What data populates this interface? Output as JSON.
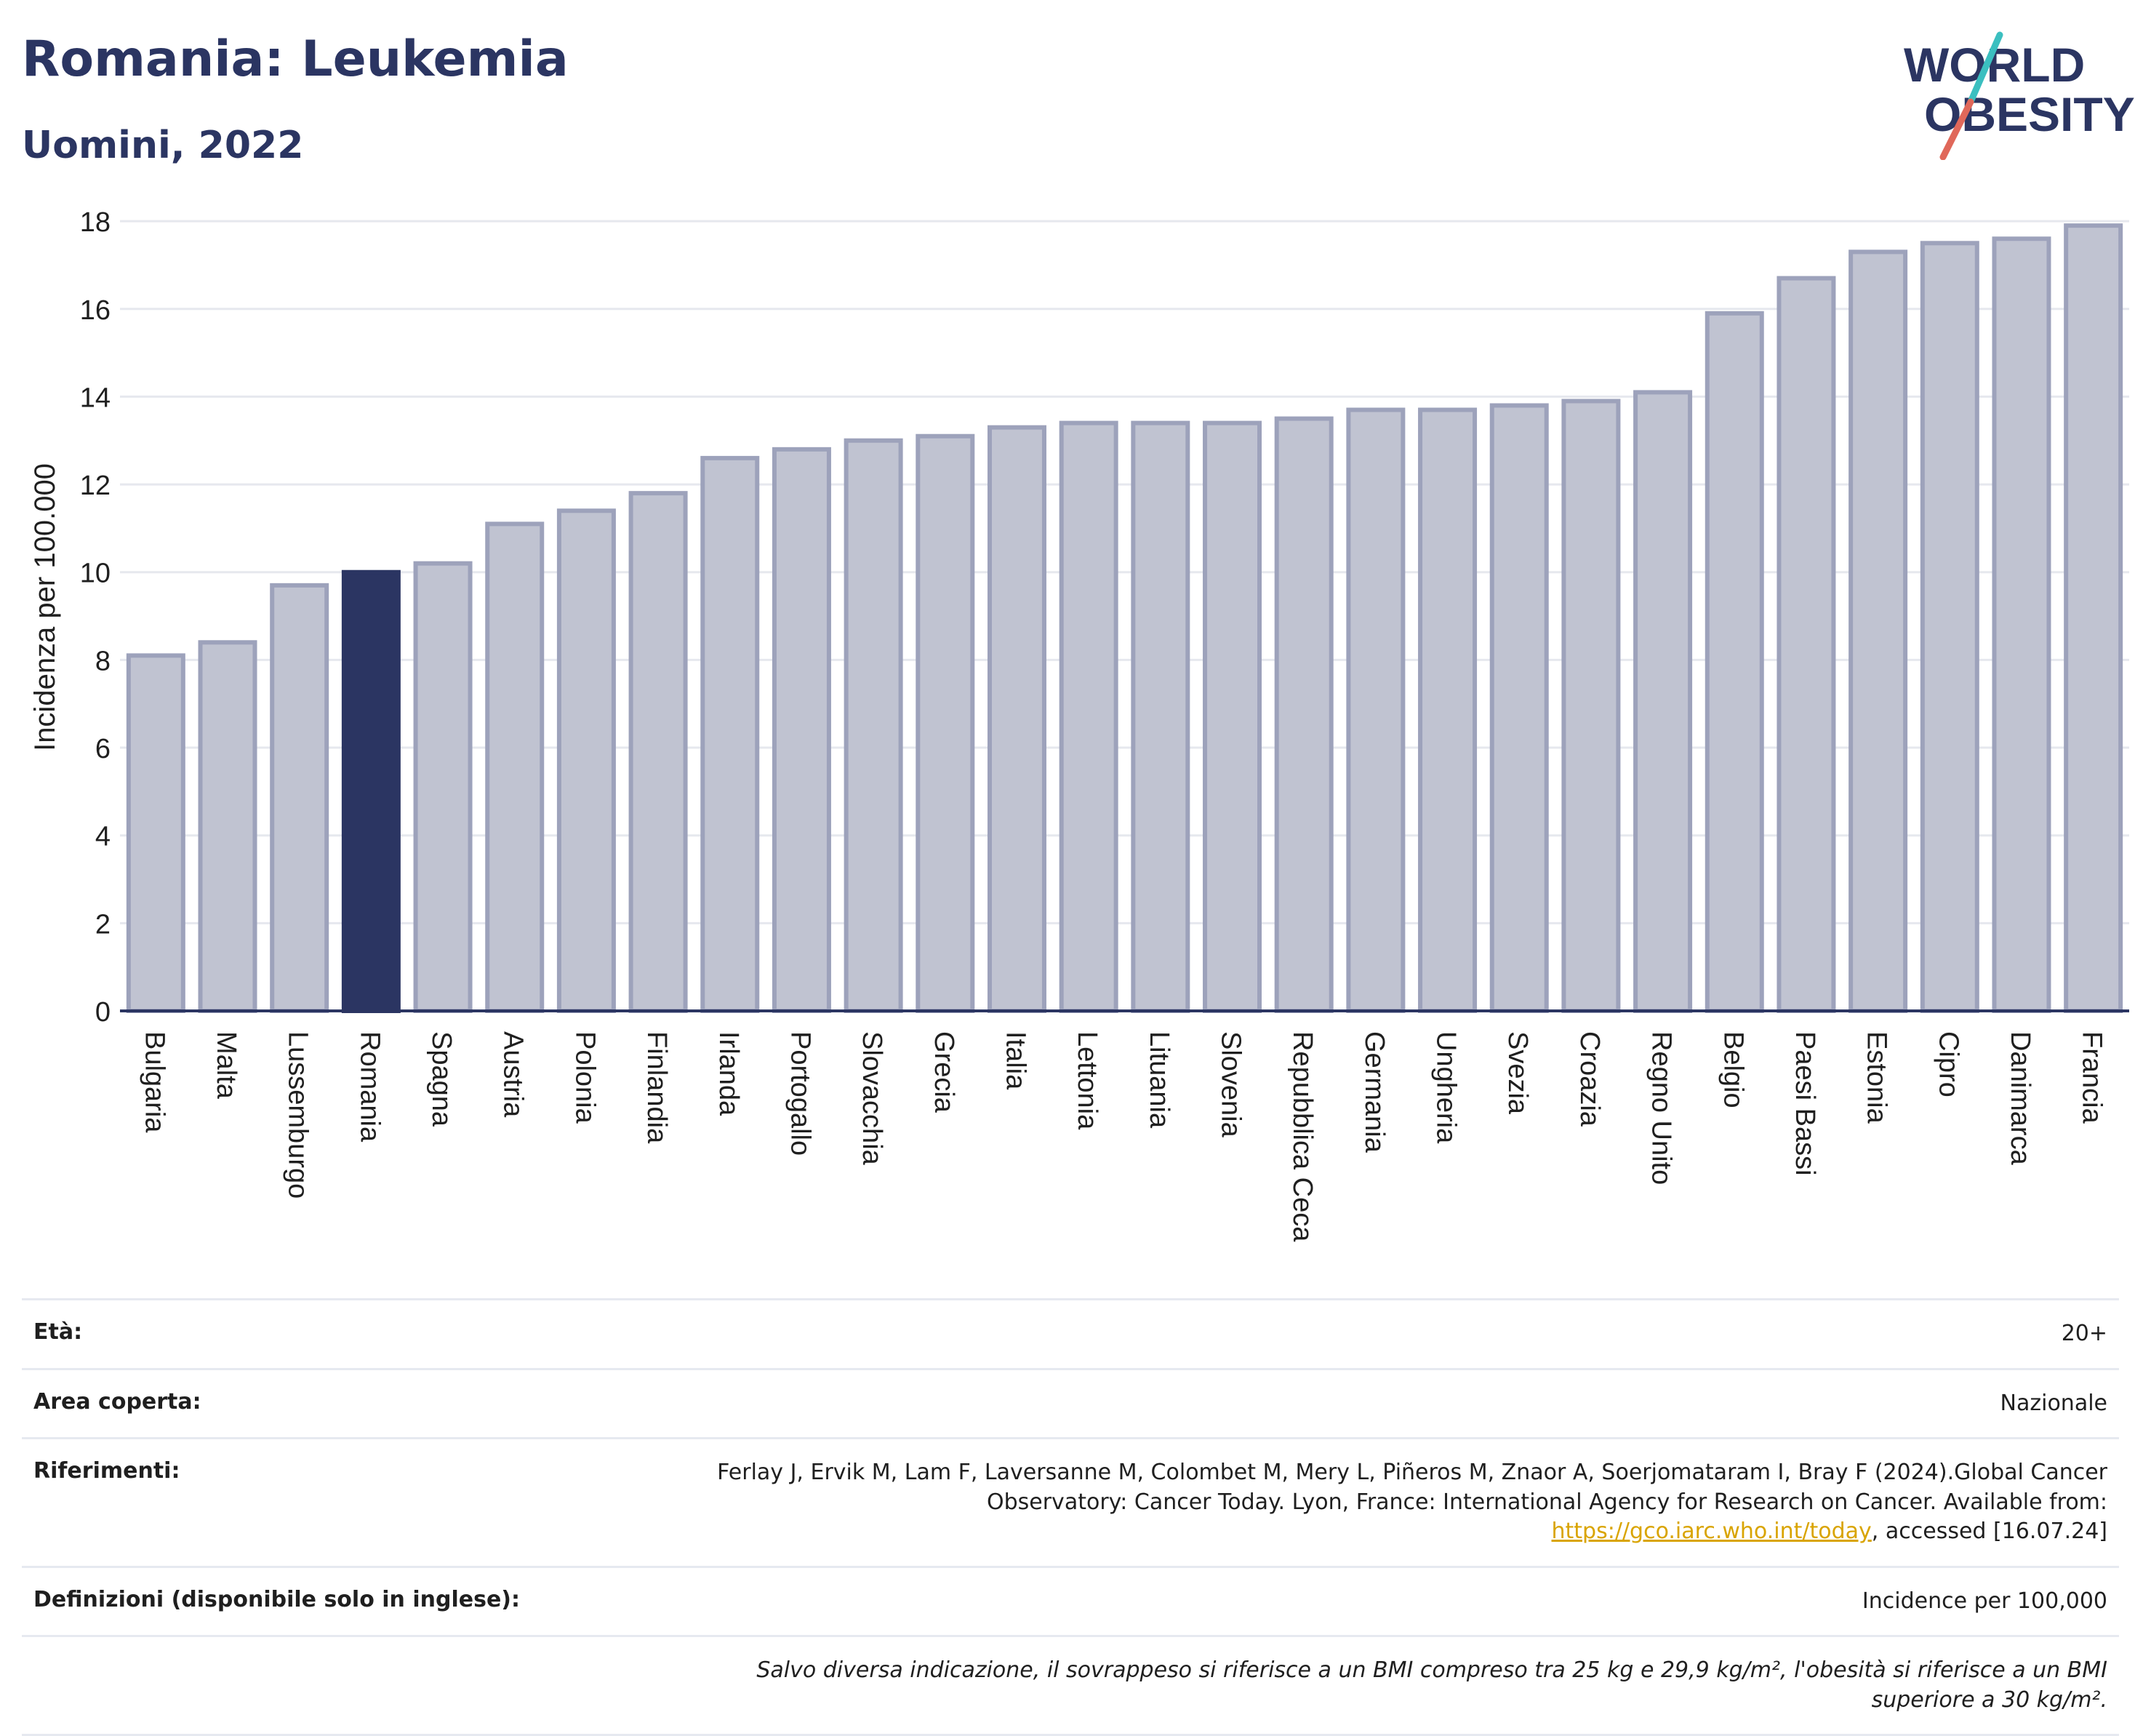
{
  "title": "Romania: Leukemia",
  "subtitle": "Uomini, 2022",
  "logo": {
    "line1": "WORLD",
    "line2": "OBESITY",
    "accent_colors": [
      "#e0685a",
      "#3bbfc0"
    ],
    "text_color": "#2b3562"
  },
  "colors": {
    "bar": "#c0c3d1",
    "bar_border": "#9da2bb",
    "highlight": "#2b3562",
    "grid": "#e6e8ee",
    "axis": "#2b3562"
  },
  "chart_data": {
    "type": "bar",
    "ylabel": "Incidenza per 100.000",
    "xlabel": "",
    "ylim": [
      0,
      18.4
    ],
    "yticks": [
      0,
      2,
      4,
      6,
      8,
      10,
      12,
      14,
      16,
      18
    ],
    "grid": true,
    "highlight": "Romania",
    "categories": [
      "Bulgaria",
      "Malta",
      "Lussemburgo",
      "Romania",
      "Spagna",
      "Austria",
      "Polonia",
      "Finlandia",
      "Irlanda",
      "Portogallo",
      "Slovacchia",
      "Grecia",
      "Italia",
      "Lettonia",
      "Lituania",
      "Slovenia",
      "Repubblica Ceca",
      "Germania",
      "Ungheria",
      "Svezia",
      "Croazia",
      "Regno Unito",
      "Belgio",
      "Paesi Bassi",
      "Estonia",
      "Cipro",
      "Danimarca",
      "Francia"
    ],
    "values": [
      8.1,
      8.4,
      9.7,
      10.0,
      10.2,
      11.1,
      11.4,
      11.8,
      12.6,
      12.8,
      13.0,
      13.1,
      13.3,
      13.4,
      13.4,
      13.4,
      13.5,
      13.7,
      13.7,
      13.8,
      13.9,
      14.1,
      15.9,
      16.7,
      17.3,
      17.5,
      17.6,
      17.9
    ]
  },
  "info": {
    "age_label": "Età:",
    "age_value": "20+",
    "area_label": "Area coperta:",
    "area_value": "Nazionale",
    "refs_label": "Riferimenti:",
    "refs_text_1": "Ferlay J, Ervik M, Lam F, Laversanne M, Colombet M, Mery L, Piñeros M, Znaor A, Soerjomataram I, Bray F (2024).Global Cancer Observatory: Cancer Today. Lyon, France: International Agency for Research on Cancer. Available from: ",
    "refs_link": "https://gco.iarc.who.int/today",
    "refs_text_2": ", accessed [16.07.24]",
    "defs_label": "Definizioni (disponibile solo in inglese):",
    "defs_value": "Incidence per 100,000",
    "footnote": "Salvo diversa indicazione, il sovrappeso si riferisce a un BMI compreso tra 25 kg e 29,9 kg/m², l'obesità si riferisce a un BMI superiore a 30 kg/m²."
  }
}
